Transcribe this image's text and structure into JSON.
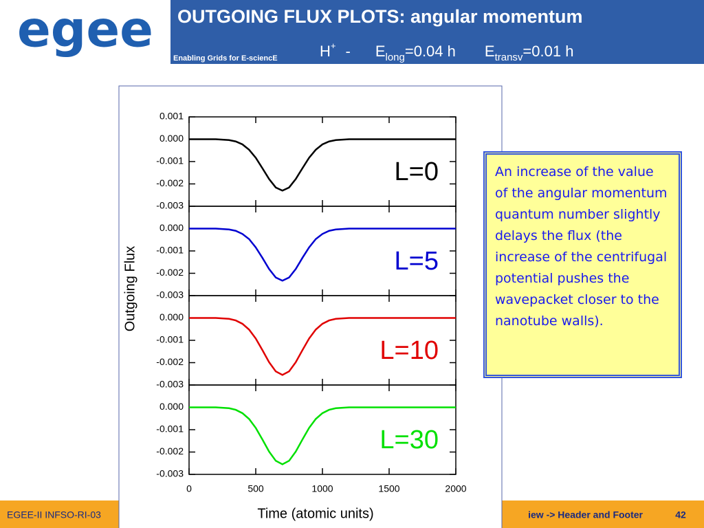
{
  "header": {
    "logo": "egee",
    "tagline": "Enabling Grids for E-sciencE",
    "title": "OUTGOING FLUX PLOTS: angular momentum",
    "subtitle": {
      "ion": "H",
      "ion_charge": "+",
      "dash": "-",
      "e1": "E",
      "e1_sub": "long",
      "e1_value": "=0.04 h",
      "e2": "E",
      "e2_sub": "transv",
      "e2_value": "=0.01 h"
    }
  },
  "note": "An increase of the value of the angular momentum quantum number slightly delays the flux (the increase of the centrifugal potential pushes the wavepacket closer to the nanotube walls).",
  "footer": {
    "left": "EGEE-II INFSO-RI-03",
    "right": "iew -> Header and Footer",
    "page": "42"
  },
  "chart_data": [
    {
      "type": "line",
      "annotation": "L=0",
      "ylabel": "Outgoing Flux",
      "x": [
        0,
        100,
        200,
        300,
        350,
        400,
        450,
        500,
        550,
        600,
        650,
        700,
        750,
        800,
        850,
        900,
        950,
        1000,
        1050,
        1100,
        1200,
        1500,
        2000
      ],
      "series": [
        {
          "name": "L=0",
          "color": "#000000",
          "values": [
            0,
            0,
            0,
            -4e-05,
            -0.0001,
            -0.00023,
            -0.00047,
            -0.00083,
            -0.0013,
            -0.00178,
            -0.00216,
            -0.0023,
            -0.00216,
            -0.00178,
            -0.0013,
            -0.00083,
            -0.00047,
            -0.00023,
            -0.0001,
            -4e-05,
            0,
            0,
            0
          ]
        }
      ],
      "xlim": [
        0,
        2000
      ],
      "xticks": [
        0,
        500,
        1000,
        1500,
        2000
      ],
      "ylim": [
        -0.003,
        0.001
      ],
      "yticks": [
        0.001,
        {
          "value": 0,
          "label": "0.000"
        },
        -0.001,
        -0.002,
        -0.003
      ]
    },
    {
      "type": "line",
      "annotation": "L=5",
      "x": [
        0,
        100,
        200,
        300,
        350,
        400,
        450,
        500,
        550,
        600,
        650,
        700,
        750,
        800,
        850,
        900,
        950,
        1000,
        1050,
        1100,
        1200,
        1500,
        2000
      ],
      "series": [
        {
          "name": "L=5",
          "color": "#0000d0",
          "values": [
            0,
            0,
            0,
            -4e-05,
            -0.0001,
            -0.00024,
            -0.00047,
            -0.00084,
            -0.00131,
            -0.00181,
            -0.00219,
            -0.00233,
            -0.00219,
            -0.00181,
            -0.00131,
            -0.00084,
            -0.00047,
            -0.00024,
            -0.0001,
            -4e-05,
            0,
            0,
            0
          ]
        }
      ],
      "xlim": [
        0,
        2000
      ],
      "xticks": [
        0,
        500,
        1000,
        1500,
        2000
      ],
      "ylim": [
        -0.003,
        0.001
      ],
      "yticks": [
        {
          "value": 0,
          "label": "0.000"
        },
        -0.001,
        -0.002,
        -0.003
      ]
    },
    {
      "type": "line",
      "annotation": "L=10",
      "x": [
        0,
        100,
        200,
        300,
        350,
        400,
        450,
        500,
        550,
        600,
        650,
        700,
        750,
        800,
        850,
        900,
        950,
        1000,
        1050,
        1100,
        1200,
        1500,
        2000
      ],
      "series": [
        {
          "name": "L=10",
          "color": "#e00000",
          "values": [
            0,
            0,
            0,
            -4e-05,
            -0.00011,
            -0.00026,
            -0.00052,
            -0.00092,
            -0.00144,
            -0.00198,
            -0.00239,
            -0.00255,
            -0.00239,
            -0.00198,
            -0.00144,
            -0.00092,
            -0.00052,
            -0.00026,
            -0.00011,
            -4e-05,
            0,
            0,
            0
          ]
        }
      ],
      "xlim": [
        0,
        2000
      ],
      "xticks": [
        0,
        500,
        1000,
        1500,
        2000
      ],
      "ylim": [
        -0.003,
        0.001
      ],
      "yticks": [
        {
          "value": 0,
          "label": "0.000"
        },
        -0.001,
        -0.002,
        -0.003
      ]
    },
    {
      "type": "line",
      "annotation": "L=30",
      "xlabel": "Time (atomic units)",
      "x": [
        0,
        100,
        200,
        300,
        350,
        400,
        450,
        500,
        550,
        600,
        650,
        700,
        750,
        800,
        850,
        900,
        950,
        1000,
        1050,
        1100,
        1200,
        1500,
        2000
      ],
      "series": [
        {
          "name": "L=30",
          "color": "#00e000",
          "values": [
            0,
            0,
            0,
            -4e-05,
            -0.00011,
            -0.00026,
            -0.00052,
            -0.00092,
            -0.00144,
            -0.00198,
            -0.00239,
            -0.00255,
            -0.00239,
            -0.00198,
            -0.00144,
            -0.00092,
            -0.00052,
            -0.00026,
            -0.00011,
            -4e-05,
            0,
            0,
            0
          ]
        }
      ],
      "xlim": [
        0,
        2000
      ],
      "xticks": [
        0,
        500,
        1000,
        1500,
        2000
      ],
      "ylim": [
        -0.003,
        0.001
      ],
      "yticks": [
        {
          "value": 0,
          "label": "0.000"
        },
        -0.001,
        -0.002,
        -0.003
      ]
    }
  ]
}
